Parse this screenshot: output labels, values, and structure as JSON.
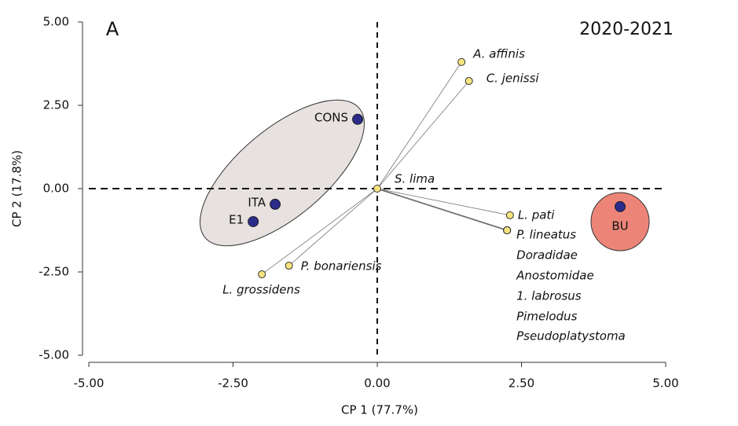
{
  "chart_data": {
    "type": "scatter",
    "annotations": [
      "A",
      "2020-2021"
    ],
    "x_label": "CP 1 (77.7%)",
    "y_label": "CP 2 (17.8%)",
    "xlim": [
      -5,
      5
    ],
    "ylim": [
      -5,
      5
    ],
    "xticks": [
      {
        "value": -5,
        "label": "-5.00"
      },
      {
        "value": -2.5,
        "label": "-2.50"
      },
      {
        "value": 0,
        "label": "0.00"
      },
      {
        "value": 2.5,
        "label": "2.50"
      },
      {
        "value": 5,
        "label": "5.00"
      }
    ],
    "yticks": [
      {
        "value": -5,
        "label": "-5.00"
      },
      {
        "value": -2.5,
        "label": "-2.50"
      },
      {
        "value": 0,
        "label": "0.00"
      },
      {
        "value": 2.5,
        "label": "2.50"
      },
      {
        "value": 5,
        "label": "5.00"
      }
    ],
    "sites": {
      "color": "#2b2b8a",
      "labels": [
        "CONS",
        "ITA",
        "E1",
        "BU"
      ],
      "x": [
        -0.34,
        -1.77,
        -2.15,
        4.21
      ],
      "y": [
        2.08,
        -0.47,
        -0.99,
        -0.54
      ]
    },
    "species": {
      "color": "#f6e47e",
      "labels": [
        "A. affinis",
        "C. jenissi",
        "S. lima",
        "L. pati",
        "P. lineatus",
        "Doradidae",
        "Anostomidae",
        "1. labrosus",
        "Pimelodus",
        "Pseudoplatystoma",
        "P. bonariensis",
        "L. grossidens"
      ],
      "x": [
        1.46,
        1.59,
        0,
        2.3,
        2.25,
        2.25,
        2.25,
        2.25,
        2.25,
        2.25,
        -1.53,
        -2.0
      ],
      "y": [
        3.8,
        3.23,
        0,
        -0.8,
        -1.25,
        -1.25,
        -1.25,
        -1.25,
        -1.25,
        -1.25,
        -2.31,
        -2.57
      ]
    }
  }
}
